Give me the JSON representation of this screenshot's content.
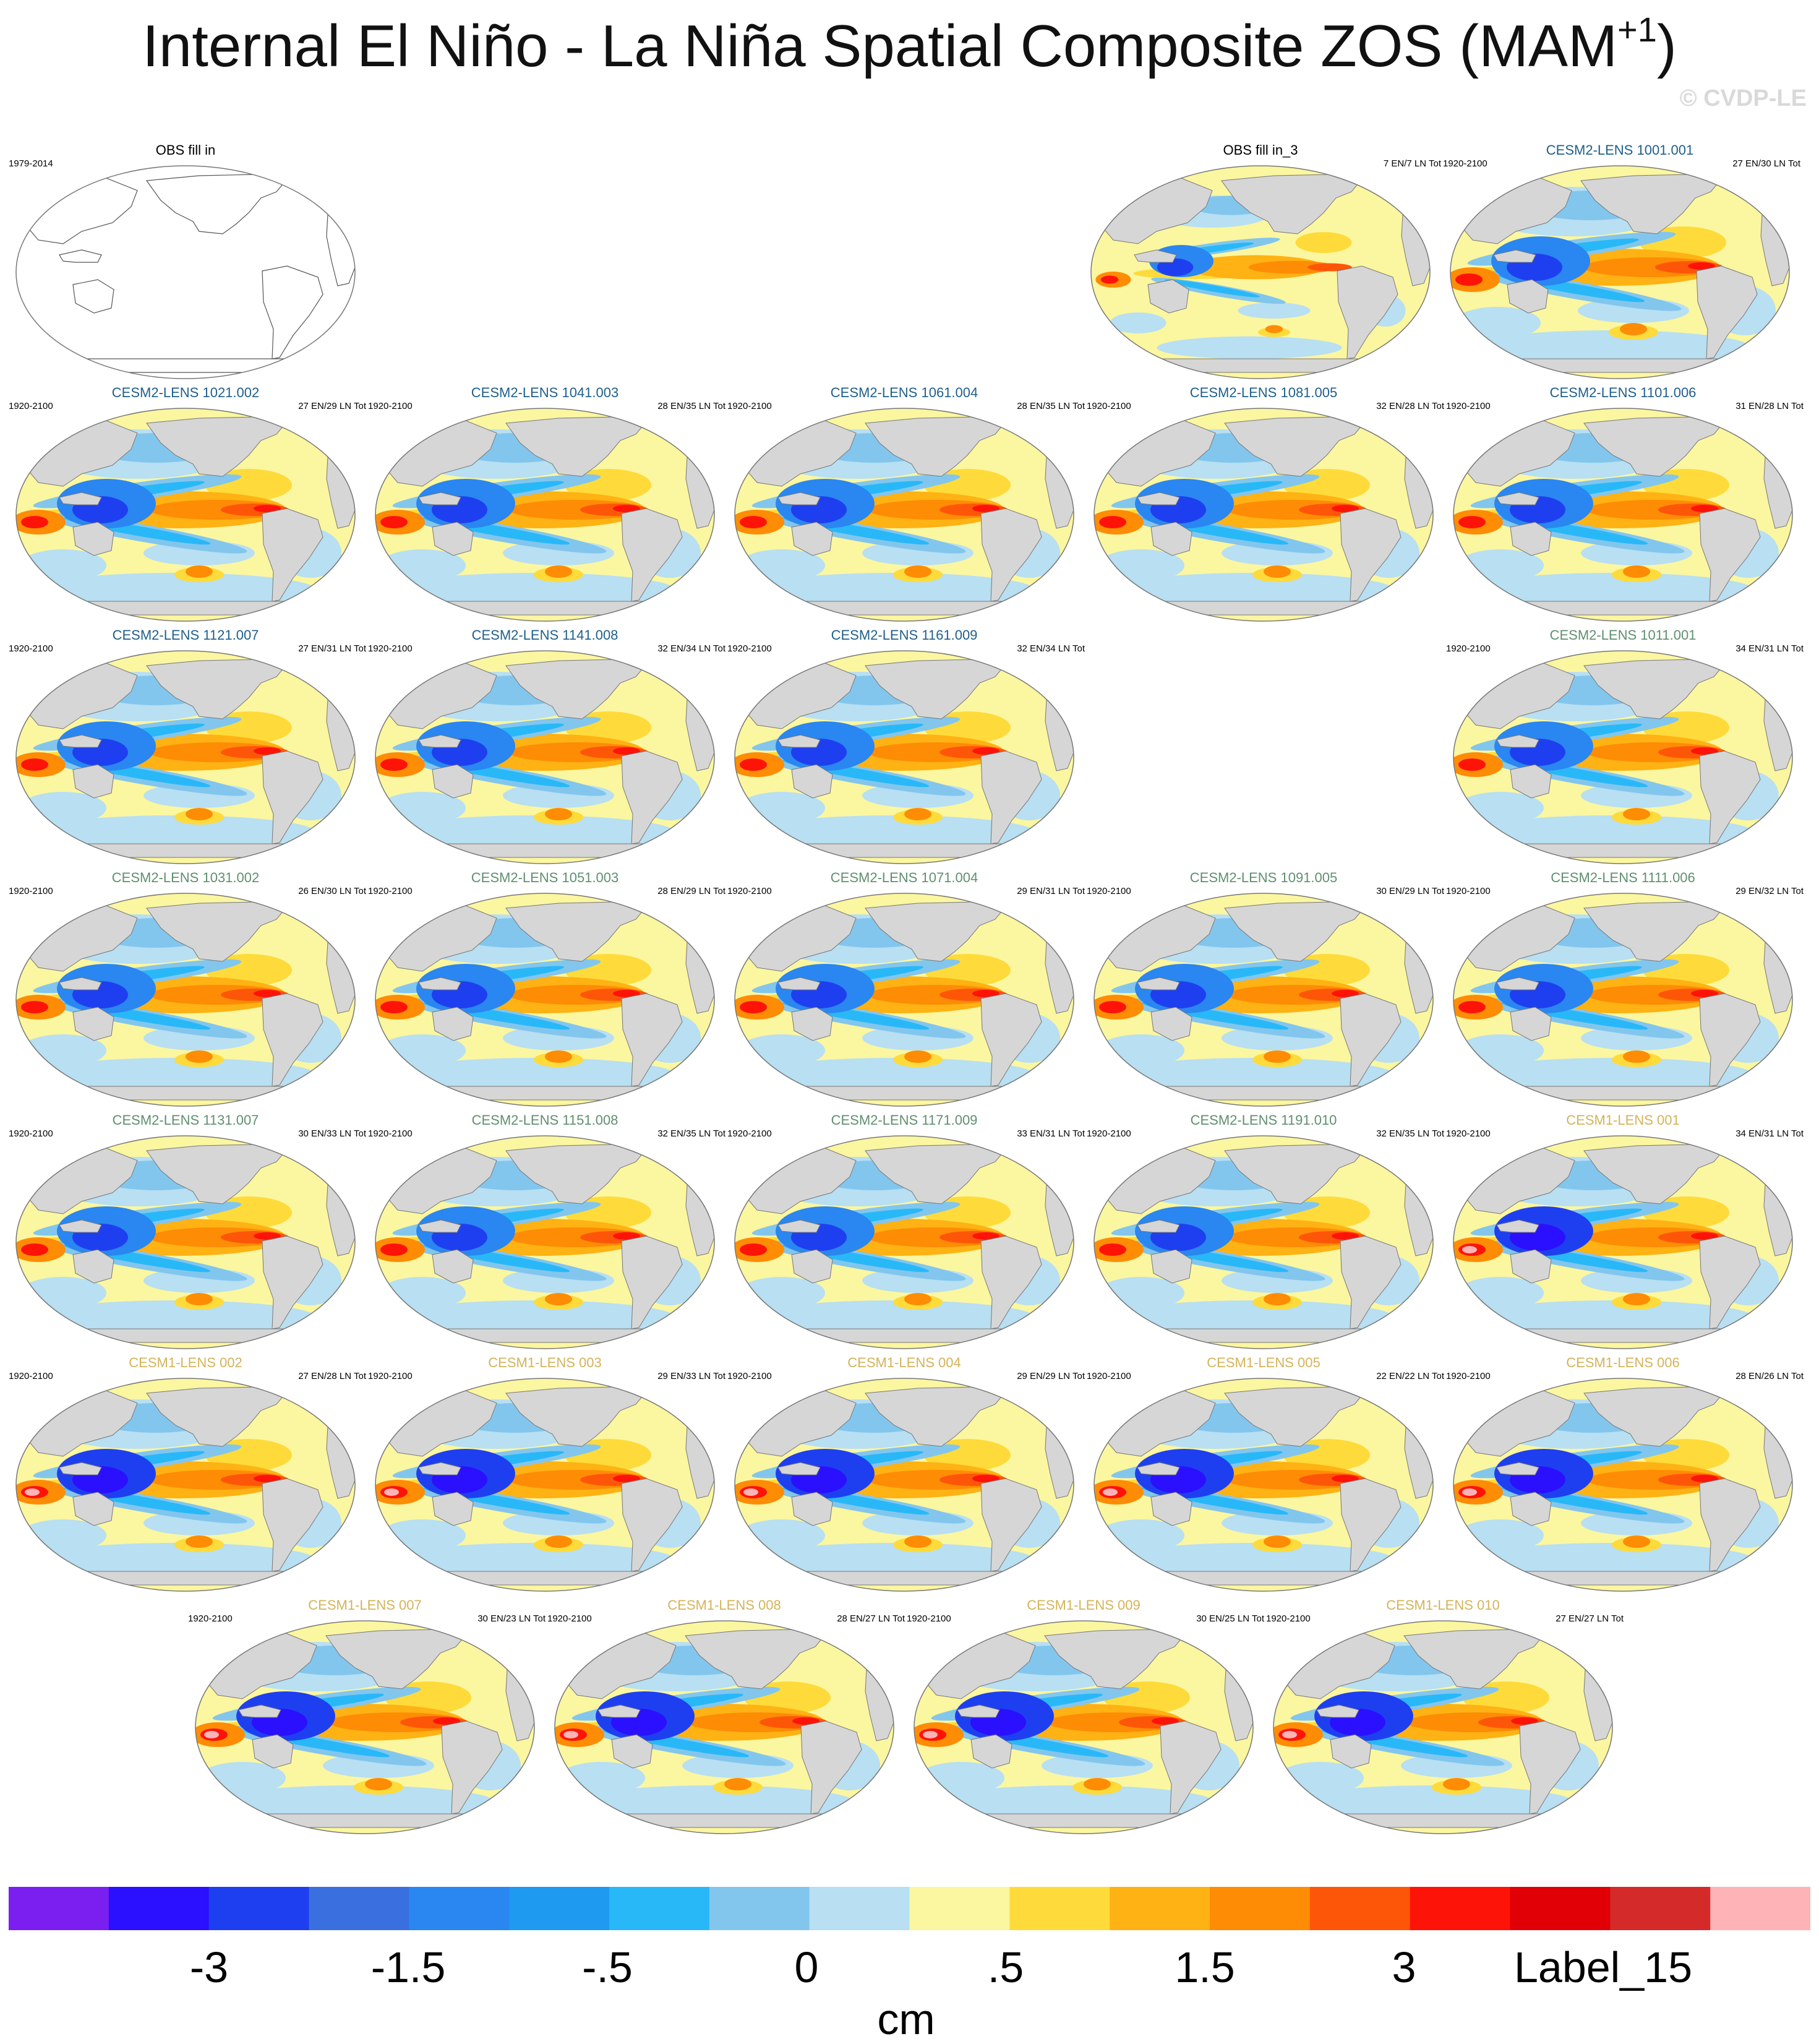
{
  "title": "Internal El Niño - La Niña Spatial Composite ZOS (MAM",
  "title_sup": "+1",
  "title_close": ")",
  "watermark": "© CVDP-LE",
  "panels": [
    {
      "title": "OBS fill in",
      "left": "1979-2014",
      "right": "",
      "color": "#000000",
      "blank": true
    },
    {
      "title": "OBS fill in_3",
      "left": "",
      "right": "7 EN/7 LN Tot",
      "color": "#000000",
      "style": "obs"
    },
    {
      "title": "CESM2-LENS 1001.001",
      "left": "1920-2100",
      "right": "27 EN/30 LN Tot",
      "color": "#1f5f8b",
      "style": "c2"
    },
    {
      "title": "CESM2-LENS 1021.002",
      "left": "1920-2100",
      "right": "27 EN/29 LN Tot",
      "color": "#1f5f8b",
      "style": "c2"
    },
    {
      "title": "CESM2-LENS 1041.003",
      "left": "1920-2100",
      "right": "28 EN/35 LN Tot",
      "color": "#1f5f8b",
      "style": "c2"
    },
    {
      "title": "CESM2-LENS 1061.004",
      "left": "1920-2100",
      "right": "28 EN/35 LN Tot",
      "color": "#1f5f8b",
      "style": "c2"
    },
    {
      "title": "CESM2-LENS 1081.005",
      "left": "1920-2100",
      "right": "32 EN/28 LN Tot",
      "color": "#1f5f8b",
      "style": "c2"
    },
    {
      "title": "CESM2-LENS 1101.006",
      "left": "1920-2100",
      "right": "31 EN/28 LN Tot",
      "color": "#1f5f8b",
      "style": "c2"
    },
    {
      "title": "CESM2-LENS 1121.007",
      "left": "1920-2100",
      "right": "27 EN/31 LN Tot",
      "color": "#1f5f8b",
      "style": "c2"
    },
    {
      "title": "CESM2-LENS 1141.008",
      "left": "1920-2100",
      "right": "32 EN/34 LN Tot",
      "color": "#1f5f8b",
      "style": "c2"
    },
    {
      "title": "CESM2-LENS 1161.009",
      "left": "1920-2100",
      "right": "32 EN/34 LN Tot",
      "color": "#1f5f8b",
      "style": "c2"
    },
    {
      "title": "CESM2-LENS 1011.001",
      "left": "1920-2100",
      "right": "34 EN/31 LN Tot",
      "color": "#5f8f6f",
      "style": "c2"
    },
    {
      "title": "CESM2-LENS 1031.002",
      "left": "1920-2100",
      "right": "26 EN/30 LN Tot",
      "color": "#5f8f6f",
      "style": "c2"
    },
    {
      "title": "CESM2-LENS 1051.003",
      "left": "1920-2100",
      "right": "28 EN/29 LN Tot",
      "color": "#5f8f6f",
      "style": "c2"
    },
    {
      "title": "CESM2-LENS 1071.004",
      "left": "1920-2100",
      "right": "29 EN/31 LN Tot",
      "color": "#5f8f6f",
      "style": "c2"
    },
    {
      "title": "CESM2-LENS 1091.005",
      "left": "1920-2100",
      "right": "30 EN/29 LN Tot",
      "color": "#5f8f6f",
      "style": "c2"
    },
    {
      "title": "CESM2-LENS 1111.006",
      "left": "1920-2100",
      "right": "29 EN/32 LN Tot",
      "color": "#5f8f6f",
      "style": "c2"
    },
    {
      "title": "CESM2-LENS 1131.007",
      "left": "1920-2100",
      "right": "30 EN/33 LN Tot",
      "color": "#5f8f6f",
      "style": "c2"
    },
    {
      "title": "CESM2-LENS 1151.008",
      "left": "1920-2100",
      "right": "32 EN/35 LN Tot",
      "color": "#5f8f6f",
      "style": "c2"
    },
    {
      "title": "CESM2-LENS 1171.009",
      "left": "1920-2100",
      "right": "33 EN/31 LN Tot",
      "color": "#5f8f6f",
      "style": "c2"
    },
    {
      "title": "CESM2-LENS 1191.010",
      "left": "1920-2100",
      "right": "32 EN/35 LN Tot",
      "color": "#5f8f6f",
      "style": "c2"
    },
    {
      "title": "CESM1-LENS 001",
      "left": "1920-2100",
      "right": "34 EN/31 LN Tot",
      "color": "#d4b35a",
      "style": "c1"
    },
    {
      "title": "CESM1-LENS 002",
      "left": "1920-2100",
      "right": "27 EN/28 LN Tot",
      "color": "#d4b35a",
      "style": "c1"
    },
    {
      "title": "CESM1-LENS 003",
      "left": "1920-2100",
      "right": "29 EN/33 LN Tot",
      "color": "#d4b35a",
      "style": "c1"
    },
    {
      "title": "CESM1-LENS 004",
      "left": "1920-2100",
      "right": "29 EN/29 LN Tot",
      "color": "#d4b35a",
      "style": "c1"
    },
    {
      "title": "CESM1-LENS 005",
      "left": "1920-2100",
      "right": "22 EN/22 LN Tot",
      "color": "#d4b35a",
      "style": "c1"
    },
    {
      "title": "CESM1-LENS 006",
      "left": "1920-2100",
      "right": "28 EN/26 LN Tot",
      "color": "#d4b35a",
      "style": "c1"
    },
    {
      "title": "CESM1-LENS 007",
      "left": "1920-2100",
      "right": "30 EN/23 LN Tot",
      "color": "#d4b35a",
      "style": "c1"
    },
    {
      "title": "CESM1-LENS 008",
      "left": "1920-2100",
      "right": "28 EN/27 LN Tot",
      "color": "#d4b35a",
      "style": "c1"
    },
    {
      "title": "CESM1-LENS 009",
      "left": "1920-2100",
      "right": "30 EN/25 LN Tot",
      "color": "#d4b35a",
      "style": "c1"
    },
    {
      "title": "CESM1-LENS 010",
      "left": "1920-2100",
      "right": "27 EN/27 LN Tot",
      "color": "#d4b35a",
      "style": "c1"
    }
  ],
  "colorbar": {
    "colors": [
      "#7b1ff0",
      "#2a10ff",
      "#1e3ff0",
      "#3a6fe0",
      "#2a86f0",
      "#1e9af0",
      "#28b8f8",
      "#82c6ee",
      "#b8dff2",
      "#fbf6a0",
      "#fedb3a",
      "#feb213",
      "#fe8c05",
      "#fe5608",
      "#fe1308",
      "#e00006",
      "#d42a2a",
      "#feb3b6"
    ],
    "labels": [
      "-3",
      "-1.5",
      "-.5",
      "0",
      ".5",
      "1.5",
      "3",
      "Label_15"
    ],
    "units": "cm"
  }
}
